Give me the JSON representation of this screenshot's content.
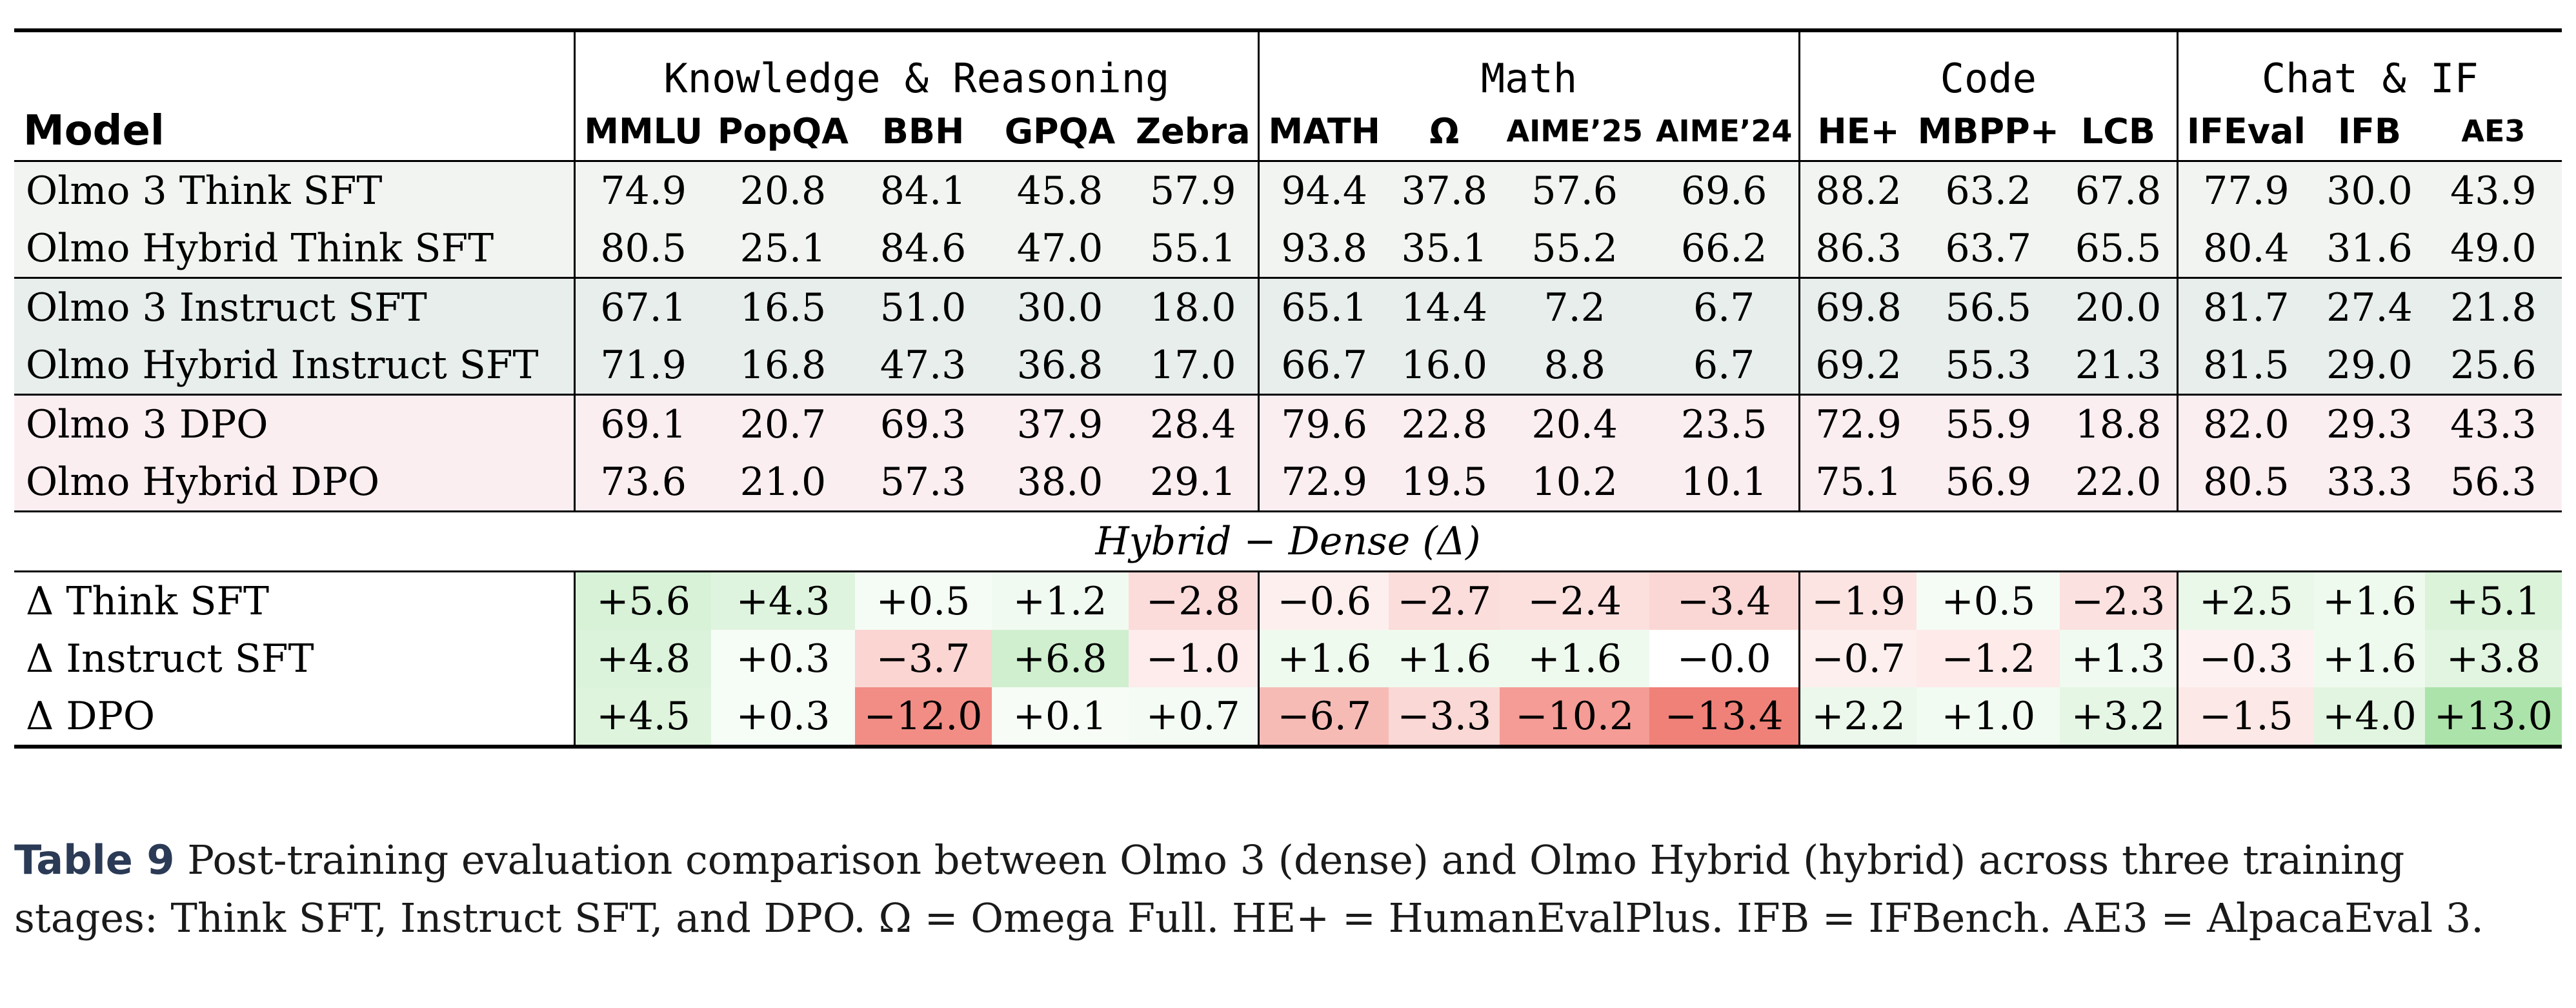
{
  "table": {
    "model_header": "Model",
    "groups": [
      {
        "label": "Knowledge & Reasoning"
      },
      {
        "label": "Math"
      },
      {
        "label": "Code"
      },
      {
        "label": "Chat & IF"
      }
    ],
    "benchmarks": [
      "MMLU",
      "PopQA",
      "BBH",
      "GPQA",
      "Zebra",
      "MATH",
      "Ω",
      "AIME’25",
      "AIME’24",
      "HE+",
      "MBPP+",
      "LCB",
      "IFEval",
      "IFB",
      "AE3"
    ],
    "rows": [
      {
        "name": "Olmo 3 Think SFT",
        "values": [
          "74.9",
          "20.8",
          "84.1",
          "45.8",
          "57.9",
          "94.4",
          "37.8",
          "57.6",
          "69.6",
          "88.2",
          "63.2",
          "67.8",
          "77.9",
          "30.0",
          "43.9"
        ]
      },
      {
        "name": "Olmo Hybrid Think SFT",
        "values": [
          "80.5",
          "25.1",
          "84.6",
          "47.0",
          "55.1",
          "93.8",
          "35.1",
          "55.2",
          "66.2",
          "86.3",
          "63.7",
          "65.5",
          "80.4",
          "31.6",
          "49.0"
        ]
      },
      {
        "name": "Olmo 3 Instruct SFT",
        "values": [
          "67.1",
          "16.5",
          "51.0",
          "30.0",
          "18.0",
          "65.1",
          "14.4",
          "7.2",
          "6.7",
          "69.8",
          "56.5",
          "20.0",
          "81.7",
          "27.4",
          "21.8"
        ]
      },
      {
        "name": "Olmo Hybrid Instruct SFT",
        "values": [
          "71.9",
          "16.8",
          "47.3",
          "36.8",
          "17.0",
          "66.7",
          "16.0",
          "8.8",
          "6.7",
          "69.2",
          "55.3",
          "21.3",
          "81.5",
          "29.0",
          "25.6"
        ]
      },
      {
        "name": "Olmo 3 DPO",
        "values": [
          "69.1",
          "20.7",
          "69.3",
          "37.9",
          "28.4",
          "79.6",
          "22.8",
          "20.4",
          "23.5",
          "72.9",
          "55.9",
          "18.8",
          "82.0",
          "29.3",
          "43.3"
        ]
      },
      {
        "name": "Olmo Hybrid DPO",
        "values": [
          "73.6",
          "21.0",
          "57.3",
          "38.0",
          "29.1",
          "72.9",
          "19.5",
          "10.2",
          "10.1",
          "75.1",
          "56.9",
          "22.0",
          "80.5",
          "33.3",
          "56.3"
        ]
      }
    ],
    "delta_title": "Hybrid − Dense (Δ)",
    "delta_rows": [
      {
        "name": "Δ Think SFT",
        "values": [
          "+5.6",
          "+4.3",
          "+0.5",
          "+1.2",
          "−2.8",
          "−0.6",
          "−2.7",
          "−2.4",
          "−3.4",
          "−1.9",
          "+0.5",
          "−2.3",
          "+2.5",
          "+1.6",
          "+5.1"
        ]
      },
      {
        "name": "Δ Instruct SFT",
        "values": [
          "+4.8",
          "+0.3",
          "−3.7",
          "+6.8",
          "−1.0",
          "+1.6",
          "+1.6",
          "+1.6",
          "−0.0",
          "−0.7",
          "−1.2",
          "+1.3",
          "−0.3",
          "+1.6",
          "+3.8"
        ]
      },
      {
        "name": "Δ DPO",
        "values": [
          "+4.5",
          "+0.3",
          "−12.0",
          "+0.1",
          "+0.7",
          "−6.7",
          "−3.3",
          "−10.2",
          "−13.4",
          "+2.2",
          "+1.0",
          "+3.2",
          "−1.5",
          "+4.0",
          "+13.0"
        ]
      }
    ],
    "colors": {
      "positive": "#a8e2a6",
      "negative": "#f07e75",
      "think_bg": "#f1f4f1",
      "instruct_bg": "#e7eeec",
      "dpo_bg": "#fbeef1"
    }
  },
  "caption": {
    "label": "Table 9",
    "text": "Post-training evaluation comparison between Olmo 3 (dense) and Olmo Hybrid (hybrid) across three training stages: Think SFT, Instruct SFT, and DPO. Ω = Omega Full. HE+ = HumanEvalPlus. IFB = IFBench. AE3 = AlpacaEval 3."
  }
}
